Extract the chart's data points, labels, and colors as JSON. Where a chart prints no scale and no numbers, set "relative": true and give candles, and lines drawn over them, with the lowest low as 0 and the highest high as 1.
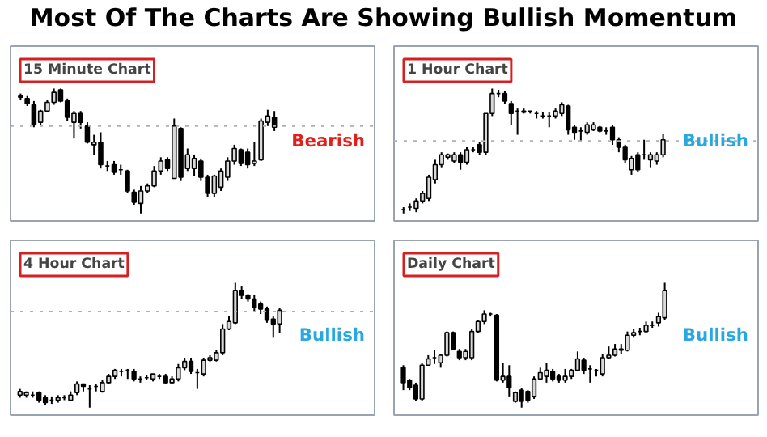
{
  "chart_data": [
    {
      "type": "candlestick",
      "title": "15 Minute Chart",
      "subtitle": "Most Of The Charts Are Showing Bullish Momentum",
      "annotations": [
        "Bearish"
      ],
      "relative": true,
      "tick_labels": false,
      "grid": false,
      "categories": [
        null,
        null,
        null,
        null,
        null,
        null,
        null,
        null,
        null,
        null,
        null,
        null,
        null,
        null,
        null,
        null,
        null,
        null,
        null,
        null,
        null,
        null,
        null,
        null,
        null,
        null,
        null,
        null,
        null,
        null,
        null,
        null,
        null,
        null,
        null,
        null,
        null,
        null,
        null
      ],
      "ref_lines": [
        {
          "axis": "y",
          "value": 0.7,
          "color": "#b0b0b0",
          "line_style": "dotted"
        }
      ],
      "ohlc": [
        [
          0.94,
          0.96,
          0.91,
          0.93
        ],
        [
          0.92,
          0.94,
          0.86,
          0.88
        ],
        [
          0.87,
          0.9,
          0.69,
          0.71
        ],
        [
          0.73,
          0.83,
          0.7,
          0.82
        ],
        [
          0.82,
          0.91,
          0.81,
          0.89
        ],
        [
          0.89,
          1.0,
          0.87,
          0.97
        ],
        [
          0.99,
          1.0,
          0.89,
          0.9
        ],
        [
          0.9,
          0.92,
          0.74,
          0.77
        ],
        [
          0.73,
          0.82,
          0.6,
          0.8
        ],
        [
          0.8,
          0.82,
          0.68,
          0.73
        ],
        [
          0.7,
          0.73,
          0.56,
          0.57
        ],
        [
          0.55,
          0.63,
          0.47,
          0.57
        ],
        [
          0.57,
          0.65,
          0.36,
          0.39
        ],
        [
          0.38,
          0.42,
          0.34,
          0.38
        ],
        [
          0.39,
          0.42,
          0.31,
          0.33
        ],
        [
          0.35,
          0.39,
          0.31,
          0.35
        ],
        [
          0.34,
          0.35,
          0.16,
          0.18
        ],
        [
          0.17,
          0.19,
          0.07,
          0.09
        ],
        [
          0.08,
          0.22,
          0,
          0.18
        ],
        [
          0.18,
          0.24,
          0.16,
          0.22
        ],
        [
          0.22,
          0.38,
          0.21,
          0.34
        ],
        [
          0.34,
          0.45,
          0.31,
          0.42
        ],
        [
          0.43,
          0.45,
          0.34,
          0.36
        ],
        [
          0.28,
          0.76,
          0.28,
          0.7
        ],
        [
          0.68,
          0.69,
          0.26,
          0.29
        ],
        [
          0.36,
          0.52,
          0.34,
          0.47
        ],
        [
          0.36,
          0.47,
          0.3,
          0.44
        ],
        [
          0.42,
          0.44,
          0.26,
          0.29
        ],
        [
          0.29,
          0.31,
          0.13,
          0.16
        ],
        [
          0.16,
          0.31,
          0.13,
          0.3
        ],
        [
          0.21,
          0.36,
          0.18,
          0.34
        ],
        [
          0.29,
          0.45,
          0.26,
          0.42
        ],
        [
          0.42,
          0.55,
          0.39,
          0.52
        ],
        [
          0.51,
          0.52,
          0.38,
          0.4
        ],
        [
          0.49,
          0.52,
          0.36,
          0.39
        ],
        [
          0.4,
          0.57,
          0.38,
          0.42
        ],
        [
          0.43,
          0.76,
          0.42,
          0.74
        ],
        [
          0.73,
          0.83,
          0.7,
          0.78
        ],
        [
          0.77,
          0.82,
          0.66,
          0.69
        ]
      ]
    },
    {
      "type": "candlestick",
      "title": "1 Hour Chart",
      "annotations": [
        "Bullish"
      ],
      "relative": true,
      "tick_labels": false,
      "grid": false,
      "categories": [
        null,
        null,
        null,
        null,
        null,
        null,
        null,
        null,
        null,
        null,
        null,
        null,
        null,
        null,
        null,
        null,
        null,
        null,
        null,
        null,
        null,
        null,
        null,
        null,
        null,
        null,
        null,
        null,
        null,
        null,
        null,
        null,
        null,
        null,
        null,
        null,
        null,
        null,
        null,
        null,
        null,
        null
      ],
      "ref_lines": [
        {
          "axis": "y",
          "value": 0.58,
          "color": "#b0b0b0",
          "line_style": "dotted"
        }
      ],
      "ohlc": [
        [
          0.03,
          0.05,
          0,
          0.03
        ],
        [
          0.05,
          0.08,
          0.02,
          0.05
        ],
        [
          0.04,
          0.12,
          0.01,
          0.1
        ],
        [
          0.1,
          0.18,
          0.08,
          0.16
        ],
        [
          0.12,
          0.31,
          0.1,
          0.29
        ],
        [
          0.27,
          0.43,
          0.24,
          0.39
        ],
        [
          0.39,
          0.49,
          0.37,
          0.47
        ],
        [
          0.45,
          0.48,
          0.43,
          0.47
        ],
        [
          0.42,
          0.49,
          0.4,
          0.47
        ],
        [
          0.47,
          0.49,
          0.35,
          0.41
        ],
        [
          0.41,
          0.53,
          0.39,
          0.51
        ],
        [
          0.51,
          0.53,
          0.49,
          0.51
        ],
        [
          0.55,
          0.57,
          0.47,
          0.49
        ],
        [
          0.49,
          0.8,
          0.47,
          0.8
        ],
        [
          0.8,
          1.0,
          0.78,
          0.96
        ],
        [
          0.96,
          0.99,
          0.93,
          0.96
        ],
        [
          0.96,
          0.98,
          0.88,
          0.9
        ],
        [
          0.88,
          0.9,
          0.71,
          0.8
        ],
        [
          0.82,
          0.84,
          0.63,
          0.82
        ],
        [
          0.82,
          0.84,
          0.8,
          0.81
        ],
        [
          0.82,
          0.82,
          0.8,
          0.82
        ],
        [
          0.8,
          0.82,
          0.76,
          0.8
        ],
        [
          0.78,
          0.81,
          0.76,
          0.78
        ],
        [
          0.78,
          0.81,
          0.69,
          0.78
        ],
        [
          0.78,
          0.84,
          0.76,
          0.82
        ],
        [
          0.8,
          0.89,
          0.78,
          0.87
        ],
        [
          0.86,
          0.87,
          0.63,
          0.67
        ],
        [
          0.69,
          0.71,
          0.59,
          0.65
        ],
        [
          0.66,
          0.69,
          0.57,
          0.66
        ],
        [
          0.65,
          0.73,
          0.63,
          0.71
        ],
        [
          0.67,
          0.73,
          0.66,
          0.71
        ],
        [
          0.69,
          0.7,
          0.65,
          0.66
        ],
        [
          0.66,
          0.69,
          0.63,
          0.66
        ],
        [
          0.69,
          0.71,
          0.55,
          0.59
        ],
        [
          0.59,
          0.61,
          0.49,
          0.53
        ],
        [
          0.53,
          0.55,
          0.4,
          0.43
        ],
        [
          0.35,
          0.46,
          0.31,
          0.44
        ],
        [
          0.47,
          0.49,
          0.33,
          0.35
        ],
        [
          0.47,
          0.59,
          0.43,
          0.47
        ],
        [
          0.43,
          0.49,
          0.37,
          0.47
        ],
        [
          0.42,
          0.49,
          0.39,
          0.47
        ],
        [
          0.47,
          0.64,
          0.45,
          0.59
        ]
      ]
    },
    {
      "type": "candlestick",
      "title": "4 Hour Chart",
      "annotations": [
        "Bullish"
      ],
      "relative": true,
      "tick_labels": false,
      "grid": false,
      "categories": [
        null,
        null,
        null,
        null,
        null,
        null,
        null,
        null,
        null,
        null,
        null,
        null,
        null,
        null,
        null,
        null,
        null,
        null,
        null,
        null,
        null,
        null,
        null,
        null,
        null,
        null,
        null,
        null,
        null,
        null,
        null,
        null,
        null,
        null,
        null,
        null,
        null,
        null,
        null,
        null,
        null,
        null
      ],
      "ref_lines": [
        {
          "axis": "y",
          "value": 0.77,
          "color": "#b0b0b0",
          "line_style": "dotted"
        }
      ],
      "ohlc": [
        [
          0.1,
          0.15,
          0.08,
          0.13
        ],
        [
          0.1,
          0.13,
          0.08,
          0.12
        ],
        [
          0.1,
          0.13,
          0.08,
          0.1
        ],
        [
          0.12,
          0.13,
          0.04,
          0.06
        ],
        [
          0.08,
          0.1,
          0.02,
          0.04
        ],
        [
          0.06,
          0.09,
          0.03,
          0.06
        ],
        [
          0.06,
          0.1,
          0.04,
          0.08
        ],
        [
          0.08,
          0.1,
          0.06,
          0.08
        ],
        [
          0.06,
          0.13,
          0.05,
          0.1
        ],
        [
          0.12,
          0.21,
          0.1,
          0.19
        ],
        [
          0.19,
          0.19,
          0.13,
          0.17
        ],
        [
          0.15,
          0.18,
          0,
          0.15
        ],
        [
          0.17,
          0.19,
          0.13,
          0.17
        ],
        [
          0.13,
          0.22,
          0.12,
          0.2
        ],
        [
          0.2,
          0.27,
          0.19,
          0.25
        ],
        [
          0.25,
          0.31,
          0.23,
          0.3
        ],
        [
          0.29,
          0.31,
          0.25,
          0.29
        ],
        [
          0.3,
          0.31,
          0.23,
          0.3
        ],
        [
          0.29,
          0.31,
          0.21,
          0.23
        ],
        [
          0.23,
          0.25,
          0.2,
          0.23
        ],
        [
          0.24,
          0.26,
          0.22,
          0.24
        ],
        [
          0.23,
          0.27,
          0.21,
          0.27
        ],
        [
          0.25,
          0.27,
          0.23,
          0.25
        ],
        [
          0.25,
          0.27,
          0.19,
          0.2
        ],
        [
          0.2,
          0.25,
          0.19,
          0.23
        ],
        [
          0.23,
          0.35,
          0.21,
          0.32
        ],
        [
          0.32,
          0.4,
          0.3,
          0.37
        ],
        [
          0.37,
          0.4,
          0.27,
          0.29
        ],
        [
          0.28,
          0.31,
          0.15,
          0.28
        ],
        [
          0.27,
          0.4,
          0.25,
          0.38
        ],
        [
          0.38,
          0.42,
          0.37,
          0.4
        ],
        [
          0.38,
          0.46,
          0.37,
          0.44
        ],
        [
          0.44,
          0.67,
          0.42,
          0.63
        ],
        [
          0.63,
          0.73,
          0.62,
          0.69
        ],
        [
          0.68,
          1.0,
          0.67,
          0.94
        ],
        [
          0.94,
          0.97,
          0.87,
          0.9
        ],
        [
          0.9,
          0.91,
          0.85,
          0.87
        ],
        [
          0.87,
          0.9,
          0.77,
          0.8
        ],
        [
          0.83,
          0.85,
          0.75,
          0.79
        ],
        [
          0.79,
          0.81,
          0.68,
          0.7
        ],
        [
          0.71,
          0.73,
          0.56,
          0.67
        ],
        [
          0.67,
          0.8,
          0.6,
          0.78
        ]
      ]
    },
    {
      "type": "candlestick",
      "title": "Daily Chart",
      "annotations": [
        "Bullish"
      ],
      "relative": true,
      "tick_labels": false,
      "grid": false,
      "categories": [
        null,
        null,
        null,
        null,
        null,
        null,
        null,
        null,
        null,
        null,
        null,
        null,
        null,
        null,
        null,
        null,
        null,
        null,
        null,
        null,
        null,
        null,
        null,
        null,
        null,
        null,
        null,
        null,
        null,
        null,
        null,
        null,
        null,
        null,
        null,
        null,
        null,
        null,
        null,
        null,
        null,
        null,
        null
      ],
      "ohlc": [
        [
          0.32,
          0.34,
          0.14,
          0.2
        ],
        [
          0.22,
          0.23,
          0.14,
          0.16
        ],
        [
          0.18,
          0.2,
          0.05,
          0.07
        ],
        [
          0.07,
          0.36,
          0.05,
          0.34
        ],
        [
          0.34,
          0.42,
          0.34,
          0.39
        ],
        [
          0.4,
          0.46,
          0.35,
          0.4
        ],
        [
          0.36,
          0.43,
          0.32,
          0.42
        ],
        [
          0.42,
          0.61,
          0.41,
          0.6
        ],
        [
          0.6,
          0.61,
          0.46,
          0.47
        ],
        [
          0.45,
          0.47,
          0.38,
          0.4
        ],
        [
          0.4,
          0.47,
          0.38,
          0.45
        ],
        [
          0.4,
          0.63,
          0.38,
          0.61
        ],
        [
          0.61,
          0.7,
          0.6,
          0.69
        ],
        [
          0.69,
          0.78,
          0.67,
          0.75
        ],
        [
          0.75,
          0.76,
          0.73,
          0.75
        ],
        [
          0.74,
          0.75,
          0.21,
          0.22
        ],
        [
          0.22,
          0.36,
          0.2,
          0.25
        ],
        [
          0.25,
          0.34,
          0.09,
          0.16
        ],
        [
          0.05,
          0.13,
          0.04,
          0.12
        ],
        [
          0.14,
          0.16,
          0,
          0.05
        ],
        [
          0.13,
          0.14,
          0.04,
          0.06
        ],
        [
          0.09,
          0.25,
          0.07,
          0.23
        ],
        [
          0.23,
          0.32,
          0.22,
          0.28
        ],
        [
          0.25,
          0.36,
          0.2,
          0.3
        ],
        [
          0.29,
          0.31,
          0.21,
          0.23
        ],
        [
          0.25,
          0.27,
          0.2,
          0.22
        ],
        [
          0.22,
          0.31,
          0.2,
          0.25
        ],
        [
          0.25,
          0.31,
          0.23,
          0.3
        ],
        [
          0.3,
          0.45,
          0.29,
          0.39
        ],
        [
          0.38,
          0.4,
          0.27,
          0.3
        ],
        [
          0.31,
          0.34,
          0.2,
          0.31
        ],
        [
          0.3,
          0.31,
          0.25,
          0.3
        ],
        [
          0.27,
          0.43,
          0.25,
          0.4
        ],
        [
          0.4,
          0.49,
          0.39,
          0.42
        ],
        [
          0.42,
          0.51,
          0.41,
          0.47
        ],
        [
          0.47,
          0.51,
          0.43,
          0.46
        ],
        [
          0.46,
          0.61,
          0.45,
          0.58
        ],
        [
          0.58,
          0.63,
          0.56,
          0.6
        ],
        [
          0.61,
          0.64,
          0.58,
          0.61
        ],
        [
          0.61,
          0.69,
          0.6,
          0.66
        ],
        [
          0.66,
          0.69,
          0.64,
          0.66
        ],
        [
          0.68,
          0.76,
          0.65,
          0.73
        ],
        [
          0.72,
          1.0,
          0.7,
          0.94
        ]
      ]
    }
  ]
}
